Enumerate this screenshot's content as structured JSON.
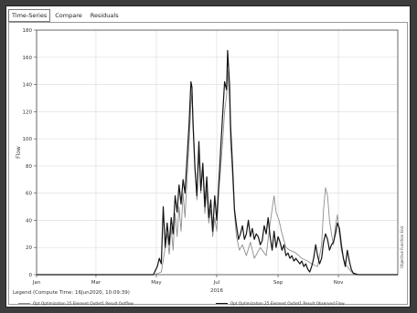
{
  "tabs": [
    {
      "label": "Time-Series",
      "active": true
    },
    {
      "label": "Compare",
      "active": false
    },
    {
      "label": "Residuals",
      "active": false
    }
  ],
  "legend": {
    "title": "Legend (Compute Time: 16Jun2020, 10:09:39)"
  },
  "side_label": "Objective Function End",
  "colors": {
    "outflow": "#8f8f8f",
    "observed": "#141414",
    "grid": "#e3e3e3",
    "background": "#3c3c3c"
  },
  "chart_data": {
    "type": "line",
    "ylabel": "Flow",
    "xlabel": "",
    "year_label": "2016",
    "ylim": [
      0,
      180
    ],
    "xlim_days": [
      0,
      365
    ],
    "yticks": [
      0,
      20,
      40,
      60,
      80,
      100,
      120,
      140,
      160,
      180
    ],
    "xticks": [
      {
        "label": "Jan",
        "day": 0
      },
      {
        "label": "Mar",
        "day": 60
      },
      {
        "label": "May",
        "day": 121
      },
      {
        "label": "Jul",
        "day": 182
      },
      {
        "label": "Sep",
        "day": 244
      },
      {
        "label": "Nov",
        "day": 305
      }
    ],
    "grid": true,
    "series": [
      {
        "name": "Opt Optimization 25 Element Outlet1 Result Outflow",
        "color": "#8f8f8f",
        "points": [
          [
            0,
            0
          ],
          [
            60,
            0
          ],
          [
            118,
            0
          ],
          [
            123,
            1
          ],
          [
            126,
            2
          ],
          [
            130,
            20
          ],
          [
            132,
            30
          ],
          [
            134,
            15
          ],
          [
            136,
            35
          ],
          [
            138,
            18
          ],
          [
            140,
            45
          ],
          [
            142,
            28
          ],
          [
            144,
            50
          ],
          [
            146,
            32
          ],
          [
            148,
            60
          ],
          [
            150,
            42
          ],
          [
            152,
            70
          ],
          [
            154,
            95
          ],
          [
            156,
            125
          ],
          [
            157,
            135
          ],
          [
            158,
            118
          ],
          [
            160,
            80
          ],
          [
            162,
            55
          ],
          [
            164,
            90
          ],
          [
            166,
            60
          ],
          [
            168,
            78
          ],
          [
            170,
            45
          ],
          [
            172,
            62
          ],
          [
            174,
            38
          ],
          [
            176,
            48
          ],
          [
            178,
            28
          ],
          [
            180,
            42
          ],
          [
            182,
            32
          ],
          [
            184,
            60
          ],
          [
            186,
            78
          ],
          [
            188,
            98
          ],
          [
            190,
            120
          ],
          [
            192,
            132
          ],
          [
            193,
            150
          ],
          [
            195,
            130
          ],
          [
            196,
            98
          ],
          [
            198,
            72
          ],
          [
            200,
            45
          ],
          [
            202,
            28
          ],
          [
            205,
            18
          ],
          [
            208,
            22
          ],
          [
            212,
            14
          ],
          [
            216,
            24
          ],
          [
            220,
            12
          ],
          [
            226,
            20
          ],
          [
            232,
            14
          ],
          [
            236,
            38
          ],
          [
            240,
            58
          ],
          [
            242,
            46
          ],
          [
            245,
            40
          ],
          [
            248,
            30
          ],
          [
            252,
            20
          ],
          [
            256,
            18
          ],
          [
            262,
            16
          ],
          [
            268,
            12
          ],
          [
            274,
            10
          ],
          [
            278,
            8
          ],
          [
            284,
            6
          ],
          [
            288,
            22
          ],
          [
            290,
            48
          ],
          [
            292,
            64
          ],
          [
            294,
            58
          ],
          [
            296,
            40
          ],
          [
            298,
            30
          ],
          [
            300,
            22
          ],
          [
            302,
            36
          ],
          [
            304,
            44
          ],
          [
            306,
            30
          ],
          [
            308,
            18
          ],
          [
            312,
            8
          ],
          [
            318,
            2
          ],
          [
            325,
            0
          ],
          [
            365,
            0
          ]
        ]
      },
      {
        "name": "Opt Optimization 25 Element Outlet1 Result Observed Flow",
        "color": "#141414",
        "points": [
          [
            0,
            0
          ],
          [
            60,
            0
          ],
          [
            118,
            0
          ],
          [
            122,
            6
          ],
          [
            124,
            12
          ],
          [
            126,
            8
          ],
          [
            128,
            50
          ],
          [
            130,
            20
          ],
          [
            132,
            38
          ],
          [
            134,
            22
          ],
          [
            136,
            42
          ],
          [
            138,
            30
          ],
          [
            140,
            58
          ],
          [
            142,
            46
          ],
          [
            144,
            66
          ],
          [
            146,
            52
          ],
          [
            148,
            70
          ],
          [
            150,
            60
          ],
          [
            152,
            85
          ],
          [
            154,
            110
          ],
          [
            156,
            142
          ],
          [
            157,
            138
          ],
          [
            158,
            112
          ],
          [
            160,
            78
          ],
          [
            162,
            58
          ],
          [
            164,
            98
          ],
          [
            166,
            62
          ],
          [
            168,
            82
          ],
          [
            170,
            50
          ],
          [
            172,
            72
          ],
          [
            174,
            42
          ],
          [
            176,
            55
          ],
          [
            178,
            32
          ],
          [
            180,
            58
          ],
          [
            182,
            40
          ],
          [
            184,
            65
          ],
          [
            186,
            92
          ],
          [
            188,
            118
          ],
          [
            190,
            142
          ],
          [
            192,
            136
          ],
          [
            193,
            165
          ],
          [
            195,
            140
          ],
          [
            196,
            110
          ],
          [
            198,
            80
          ],
          [
            200,
            48
          ],
          [
            202,
            36
          ],
          [
            204,
            26
          ],
          [
            206,
            30
          ],
          [
            208,
            36
          ],
          [
            210,
            26
          ],
          [
            212,
            30
          ],
          [
            214,
            40
          ],
          [
            216,
            28
          ],
          [
            218,
            34
          ],
          [
            220,
            26
          ],
          [
            222,
            30
          ],
          [
            224,
            28
          ],
          [
            226,
            22
          ],
          [
            228,
            25
          ],
          [
            230,
            36
          ],
          [
            232,
            30
          ],
          [
            234,
            42
          ],
          [
            236,
            28
          ],
          [
            238,
            18
          ],
          [
            240,
            32
          ],
          [
            242,
            20
          ],
          [
            244,
            28
          ],
          [
            246,
            24
          ],
          [
            248,
            18
          ],
          [
            250,
            22
          ],
          [
            252,
            14
          ],
          [
            254,
            16
          ],
          [
            256,
            12
          ],
          [
            258,
            14
          ],
          [
            260,
            10
          ],
          [
            262,
            12
          ],
          [
            264,
            10
          ],
          [
            266,
            8
          ],
          [
            268,
            10
          ],
          [
            270,
            6
          ],
          [
            272,
            8
          ],
          [
            274,
            4
          ],
          [
            276,
            2
          ],
          [
            278,
            6
          ],
          [
            280,
            12
          ],
          [
            282,
            22
          ],
          [
            284,
            14
          ],
          [
            286,
            8
          ],
          [
            288,
            12
          ],
          [
            290,
            24
          ],
          [
            292,
            30
          ],
          [
            294,
            26
          ],
          [
            296,
            18
          ],
          [
            298,
            22
          ],
          [
            300,
            24
          ],
          [
            302,
            30
          ],
          [
            304,
            38
          ],
          [
            306,
            34
          ],
          [
            308,
            22
          ],
          [
            310,
            12
          ],
          [
            312,
            6
          ],
          [
            314,
            18
          ],
          [
            316,
            10
          ],
          [
            318,
            4
          ],
          [
            320,
            1
          ],
          [
            325,
            0
          ],
          [
            365,
            0
          ]
        ]
      }
    ]
  }
}
